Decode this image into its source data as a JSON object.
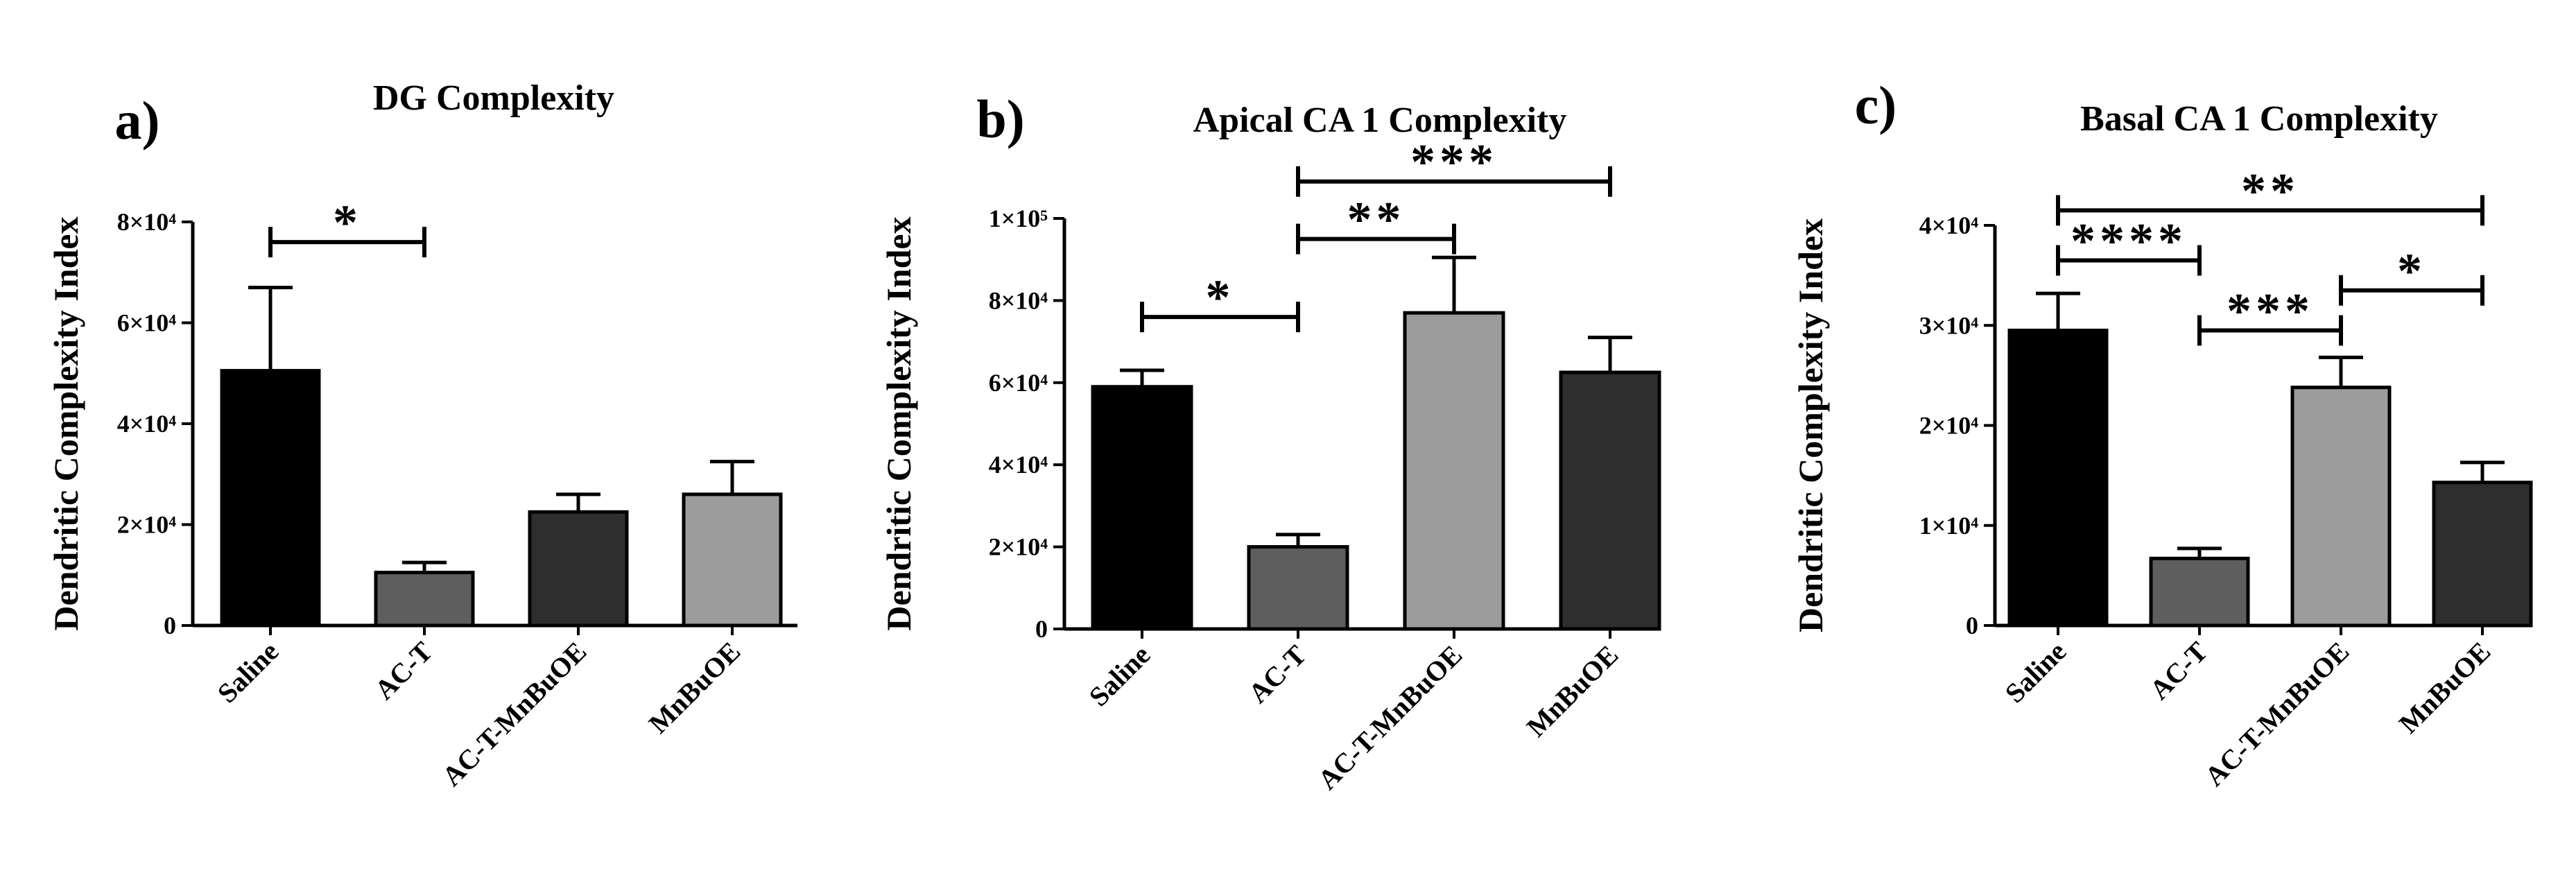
{
  "colors": {
    "Saline": "#000000",
    "AC-T": "#5e5e5e",
    "AC-T-MnBuOE": "#2e2e2e",
    "MnBuOE": "#9c9c9c",
    "AC-T-MnBuOE_b": "#9c9c9c",
    "MnBuOE_b": "#2e2e2e"
  },
  "chart_data": [
    {
      "type": "bar",
      "panel_label": "a)",
      "title": "DG Complexity",
      "ylabel": "Dendritic Complexity Index",
      "xlabel": "",
      "categories": [
        "Saline",
        "AC-T",
        "AC-T-MnBuOE",
        "MnBuOE"
      ],
      "values": [
        50500,
        10500,
        22500,
        26000
      ],
      "errors": [
        16500,
        2000,
        3500,
        6500
      ],
      "bar_colors": [
        "#000000",
        "#5e5e5e",
        "#2e2e2e",
        "#9c9c9c"
      ],
      "ylim": [
        0,
        80000
      ],
      "yticks": [
        0,
        20000,
        40000,
        60000,
        80000
      ],
      "ytick_labels": [
        "0",
        "2×10⁴",
        "4×10⁴",
        "6×10⁴",
        "8×10⁴"
      ],
      "significance": [
        {
          "from": 0,
          "to": 1,
          "level": 76000,
          "label": "*"
        }
      ]
    },
    {
      "type": "bar",
      "panel_label": "b)",
      "title": "Apical CA 1 Complexity",
      "ylabel": "Dendritic Complexity Index",
      "xlabel": "",
      "categories": [
        "Saline",
        "AC-T",
        "AC-T-MnBuOE",
        "MnBuOE"
      ],
      "values": [
        59000,
        20000,
        77000,
        62500
      ],
      "errors": [
        4000,
        3000,
        13500,
        8500
      ],
      "bar_colors": [
        "#000000",
        "#5e5e5e",
        "#9c9c9c",
        "#2e2e2e"
      ],
      "ylim": [
        0,
        100000
      ],
      "yticks": [
        0,
        20000,
        40000,
        60000,
        80000,
        100000
      ],
      "ytick_labels": [
        "0",
        "2×10⁴",
        "4×10⁴",
        "6×10⁴",
        "8×10⁴",
        "1×10⁵"
      ],
      "significance": [
        {
          "from": 0,
          "to": 1,
          "level": 76000,
          "label": "*"
        },
        {
          "from": 1,
          "to": 2,
          "level": 95000,
          "label": "**"
        },
        {
          "from": 1,
          "to": 3,
          "level": 109000,
          "label": "***"
        }
      ]
    },
    {
      "type": "bar",
      "panel_label": "c)",
      "title": "Basal CA 1 Complexity",
      "ylabel": "Dendritic Complexity Index",
      "xlabel": "",
      "categories": [
        "Saline",
        "AC-T",
        "AC-T-MnBuOE",
        "MnBuOE"
      ],
      "values": [
        29500,
        6700,
        23800,
        14300
      ],
      "errors": [
        3700,
        1000,
        3000,
        2000
      ],
      "bar_colors": [
        "#000000",
        "#5e5e5e",
        "#9c9c9c",
        "#2e2e2e"
      ],
      "ylim": [
        0,
        40000
      ],
      "yticks": [
        0,
        10000,
        20000,
        30000,
        40000
      ],
      "ytick_labels": [
        "0",
        "1×10⁴",
        "2×10⁴",
        "3×10⁴",
        "4×10⁴"
      ],
      "significance": [
        {
          "from": 0,
          "to": 3,
          "level": 41500,
          "label": "**"
        },
        {
          "from": 0,
          "to": 1,
          "level": 36500,
          "label": "****"
        },
        {
          "from": 1,
          "to": 2,
          "level": 29500,
          "label": "***"
        },
        {
          "from": 2,
          "to": 3,
          "level": 33500,
          "label": "*"
        }
      ]
    }
  ]
}
